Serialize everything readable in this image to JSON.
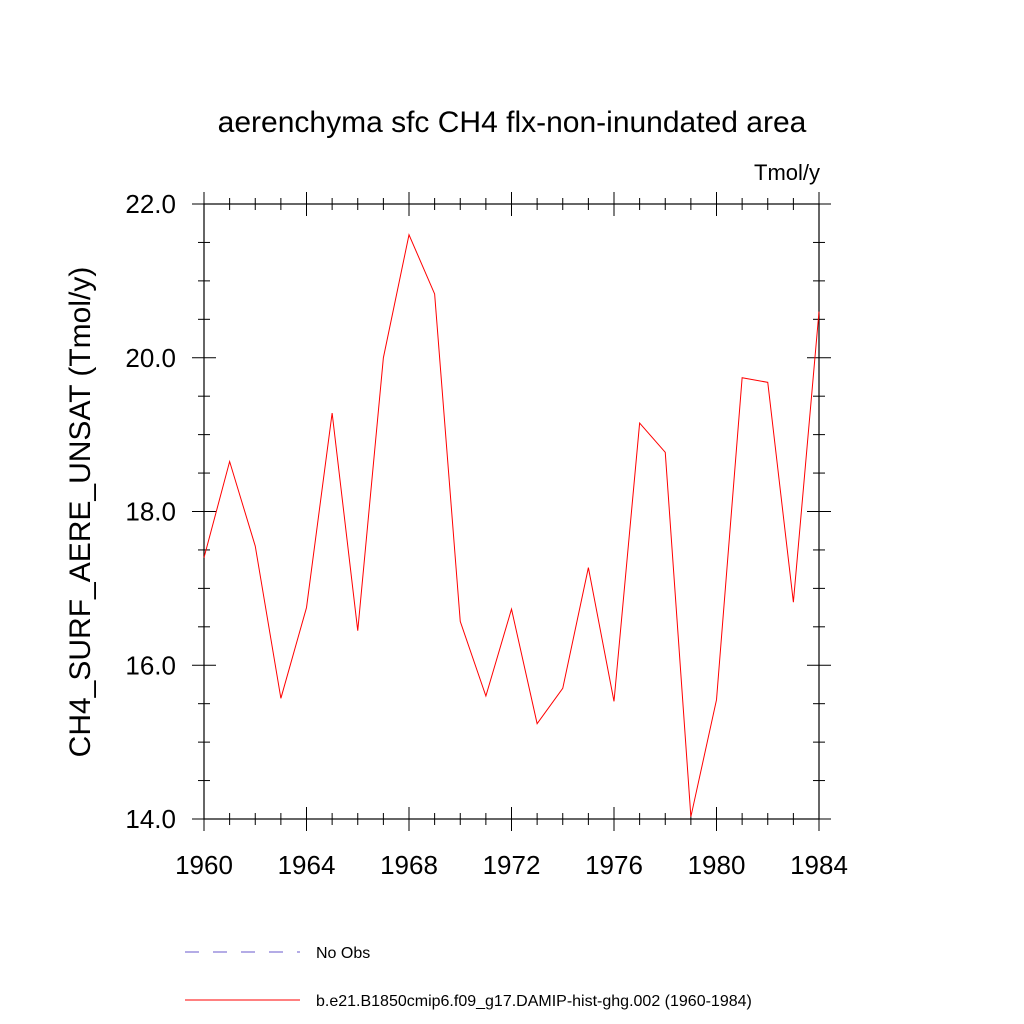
{
  "chart_data": {
    "type": "line",
    "title": "aerenchyma sfc CH4 flx-non-inundated area",
    "units_label": "Tmol/y",
    "ylabel": "CH4_SURF_AERE_UNSAT  (Tmol/y)",
    "xlabel": "",
    "xlim": [
      1960,
      1984
    ],
    "ylim": [
      14.0,
      22.0
    ],
    "x_ticks": [
      1960,
      1964,
      1968,
      1972,
      1976,
      1980,
      1984
    ],
    "x_tick_labels": [
      "1960",
      "1964",
      "1968",
      "1972",
      "1976",
      "1980",
      "1984"
    ],
    "y_ticks": [
      14.0,
      16.0,
      18.0,
      20.0,
      22.0
    ],
    "y_tick_labels": [
      "14.0",
      "16.0",
      "18.0",
      "20.0",
      "22.0"
    ],
    "grid": false,
    "legend_position": "bottom",
    "series": [
      {
        "name": "No Obs",
        "color": "#6a5acd",
        "style": "dashed",
        "x": [],
        "values": []
      },
      {
        "name": "b.e21.B1850cmip6.f09_g17.DAMIP-hist-ghg.002 (1960-1984)",
        "color": "#ff0000",
        "style": "solid",
        "x": [
          1960,
          1961,
          1962,
          1963,
          1964,
          1965,
          1966,
          1967,
          1968,
          1969,
          1970,
          1971,
          1972,
          1973,
          1974,
          1975,
          1976,
          1977,
          1978,
          1979,
          1980,
          1981,
          1982,
          1983,
          1984
        ],
        "values": [
          17.4,
          18.65,
          17.55,
          15.57,
          16.75,
          19.28,
          16.45,
          20.0,
          21.6,
          20.83,
          16.57,
          15.6,
          16.73,
          15.24,
          15.7,
          17.27,
          15.53,
          19.15,
          18.77,
          14.03,
          15.55,
          19.74,
          19.68,
          16.82,
          20.6
        ]
      }
    ]
  }
}
